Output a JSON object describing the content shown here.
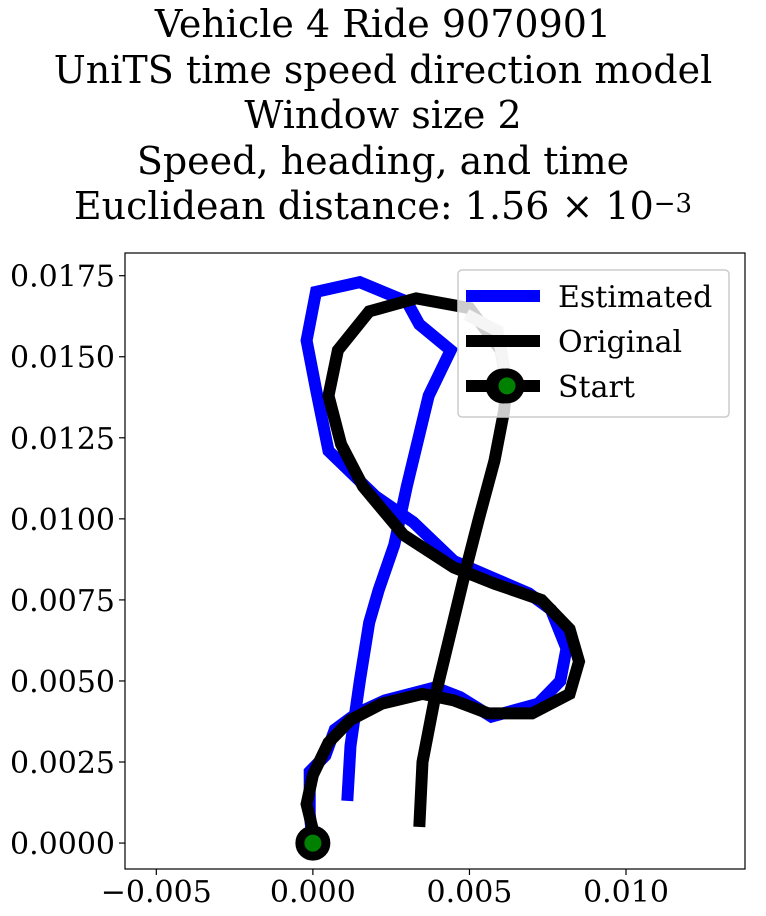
{
  "chart_data": {
    "type": "line",
    "title_lines": [
      "Vehicle 4 Ride 9070901",
      "UniTS time speed direction model",
      "Window size 2",
      "Speed, heading, and time"
    ],
    "title_distance_prefix": "Euclidean distance: 1.56",
    "title_distance_times": "×",
    "title_distance_base": "10",
    "title_distance_exponent": "−3",
    "xlim": [
      -0.006,
      0.0138
    ],
    "ylim": [
      -0.0008,
      0.0182
    ],
    "xticks": [
      -0.005,
      0.0,
      0.005,
      0.01
    ],
    "xtick_labels": [
      "−0.005",
      "0.000",
      "0.005",
      "0.010"
    ],
    "yticks": [
      0.0,
      0.0025,
      0.005,
      0.0075,
      0.01,
      0.0125,
      0.015,
      0.0175
    ],
    "ytick_labels": [
      "0.0000",
      "0.0025",
      "0.0050",
      "0.0075",
      "0.0100",
      "0.0125",
      "0.0150",
      "0.0175"
    ],
    "grid": false,
    "legend_position": "top-right",
    "series": [
      {
        "name": "Estimated",
        "color": "#0000ff",
        "points": [
          [
            0.0011,
            0.0013
          ],
          [
            0.0012,
            0.003
          ],
          [
            0.0015,
            0.005
          ],
          [
            0.0018,
            0.0068
          ],
          [
            0.0021,
            0.0078
          ],
          [
            0.0026,
            0.0092
          ],
          [
            0.003,
            0.011
          ],
          [
            0.0033,
            0.0122
          ],
          [
            0.0037,
            0.0138
          ],
          [
            0.0044,
            0.0152
          ],
          [
            0.0034,
            0.016
          ],
          [
            0.003,
            0.0167
          ],
          [
            0.0015,
            0.0173
          ],
          [
            0.0001,
            0.017
          ],
          [
            -0.0002,
            0.0155
          ],
          [
            0.0001,
            0.014
          ],
          [
            0.0005,
            0.0121
          ],
          [
            0.002,
            0.0107
          ],
          [
            0.0032,
            0.0099
          ],
          [
            0.0045,
            0.0087
          ],
          [
            0.0057,
            0.0082
          ],
          [
            0.0069,
            0.0077
          ],
          [
            0.0076,
            0.0072
          ],
          [
            0.0081,
            0.006
          ],
          [
            0.0079,
            0.005
          ],
          [
            0.0072,
            0.0043
          ],
          [
            0.0057,
            0.0039
          ],
          [
            0.0047,
            0.0045
          ],
          [
            0.0039,
            0.0048
          ],
          [
            0.0023,
            0.0044
          ],
          [
            0.0014,
            0.004
          ],
          [
            0.0007,
            0.0035
          ],
          [
            0.0004,
            0.0027
          ],
          [
            -0.0001,
            0.0022
          ],
          [
            -0.0001,
            0.0009
          ],
          [
            0.0,
            0.0
          ]
        ]
      },
      {
        "name": "Original",
        "color": "#000000",
        "points": [
          [
            0.0034,
            0.0005
          ],
          [
            0.0035,
            0.0025
          ],
          [
            0.0039,
            0.0045
          ],
          [
            0.0044,
            0.0065
          ],
          [
            0.0049,
            0.0085
          ],
          [
            0.0053,
            0.01
          ],
          [
            0.0058,
            0.0118
          ],
          [
            0.0061,
            0.0133
          ],
          [
            0.0062,
            0.0141
          ],
          [
            0.006,
            0.0152
          ],
          [
            0.005,
            0.0165
          ],
          [
            0.0033,
            0.0168
          ],
          [
            0.0018,
            0.0164
          ],
          [
            0.0008,
            0.0152
          ],
          [
            0.0005,
            0.0138
          ],
          [
            0.0009,
            0.0123
          ],
          [
            0.0016,
            0.011
          ],
          [
            0.0029,
            0.0095
          ],
          [
            0.0045,
            0.0085
          ],
          [
            0.0058,
            0.008
          ],
          [
            0.0073,
            0.0075
          ],
          [
            0.0082,
            0.0066
          ],
          [
            0.0085,
            0.0056
          ],
          [
            0.0082,
            0.0046
          ],
          [
            0.007,
            0.004
          ],
          [
            0.0056,
            0.004
          ],
          [
            0.0045,
            0.0044
          ],
          [
            0.0035,
            0.0046
          ],
          [
            0.0022,
            0.0043
          ],
          [
            0.0012,
            0.0038
          ],
          [
            0.0005,
            0.0031
          ],
          [
            0.0,
            0.0021
          ],
          [
            -0.0002,
            0.0012
          ],
          [
            0.0,
            0.0004
          ],
          [
            0.0,
            0.0
          ]
        ]
      }
    ],
    "faded_segment": {
      "points": [
        [
          0.0049,
          0.0163
        ],
        [
          0.0059,
          0.0158
        ],
        [
          0.0062,
          0.0141
        ]
      ],
      "color": "#cccccc"
    },
    "start_point": {
      "name": "Start",
      "x": 0.0062,
      "y": 0.0141,
      "fill": "#008000",
      "ring": "#000000"
    },
    "origin_point": {
      "x": 0.0,
      "y": 0.0,
      "fill": "#008000",
      "ring": "#000000"
    },
    "legend": [
      "Estimated",
      "Original",
      "Start"
    ]
  }
}
